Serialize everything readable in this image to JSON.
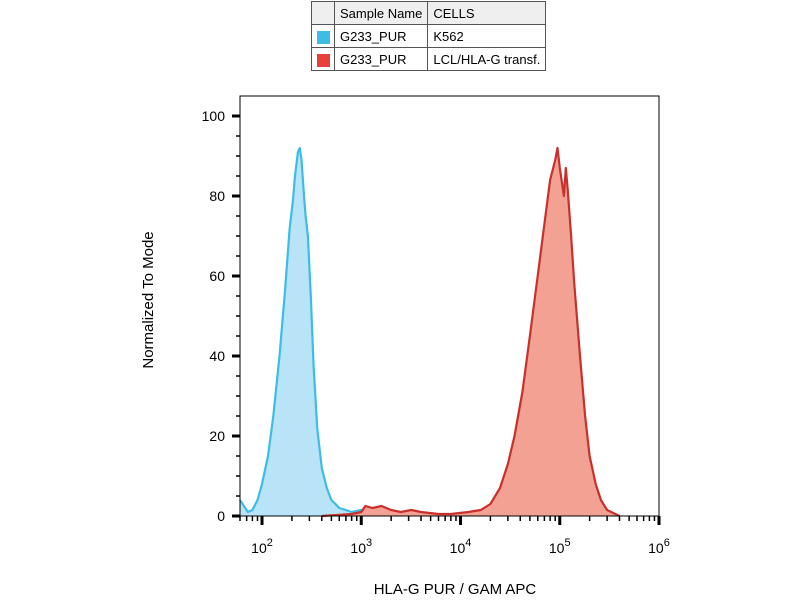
{
  "legend": {
    "header": {
      "name": "Sample Name",
      "cells": "CELLS"
    },
    "rows": [
      {
        "name": "G233_PUR",
        "cells": "K562",
        "color": "#3cbde6"
      },
      {
        "name": "G233_PUR",
        "cells": "LCL/HLA-G transf.",
        "color": "#e8403a"
      }
    ]
  },
  "chart_data": {
    "type": "area",
    "xlabel": "HLA-G PUR / GAM APC",
    "ylabel": "Normalized To Mode",
    "xscale": "log",
    "xlim": [
      60,
      1000000
    ],
    "ylim": [
      0,
      105
    ],
    "yticks": [
      0,
      20,
      40,
      60,
      80,
      100
    ],
    "xticks": [
      {
        "value": 100,
        "base": "10",
        "exp": "2"
      },
      {
        "value": 1000,
        "base": "10",
        "exp": "3"
      },
      {
        "value": 10000,
        "base": "10",
        "exp": "4"
      },
      {
        "value": 100000,
        "base": "10",
        "exp": "5"
      },
      {
        "value": 1000000,
        "base": "10",
        "exp": "6"
      }
    ],
    "grid": false,
    "series": [
      {
        "name": "K562",
        "color": "#3cbde6",
        "fill": "#b9e3f6",
        "x": [
          60,
          72,
          80,
          90,
          100,
          115,
          130,
          150,
          170,
          190,
          205,
          215,
          230,
          240,
          250,
          258,
          265,
          275,
          290,
          310,
          330,
          360,
          400,
          450,
          500,
          550,
          600,
          700,
          800,
          1000,
          1200,
          1500
        ],
        "y": [
          4,
          1,
          1.5,
          4,
          8,
          15,
          25,
          40,
          56,
          72,
          79,
          85,
          91,
          92,
          89,
          84,
          80,
          75,
          70,
          55,
          38,
          22,
          12,
          7,
          4,
          3,
          2,
          1.5,
          1,
          1.5,
          1,
          0.5
        ]
      },
      {
        "name": "LCL/HLA-G transf.",
        "color": "#c9302c",
        "fill": "#f3a193",
        "x": [
          400,
          600,
          800,
          1000,
          1100,
          1300,
          1600,
          2000,
          2500,
          3200,
          4000,
          6000,
          8000,
          12000,
          16000,
          20000,
          25000,
          30000,
          35000,
          42000,
          50000,
          60000,
          70000,
          80000,
          90000,
          95000,
          100000,
          110000,
          115000,
          120000,
          130000,
          140000,
          160000,
          180000,
          200000,
          230000,
          260000,
          300000,
          400000
        ],
        "y": [
          0,
          0.3,
          0.5,
          1,
          2.5,
          2,
          2.5,
          1.5,
          1,
          1.5,
          1,
          0.5,
          0.5,
          1,
          1.5,
          3,
          7,
          13,
          20,
          31,
          45,
          60,
          73,
          84,
          89,
          92,
          87,
          80,
          87,
          82,
          70,
          58,
          40,
          25,
          15,
          8,
          4,
          1.5,
          0
        ]
      }
    ]
  }
}
